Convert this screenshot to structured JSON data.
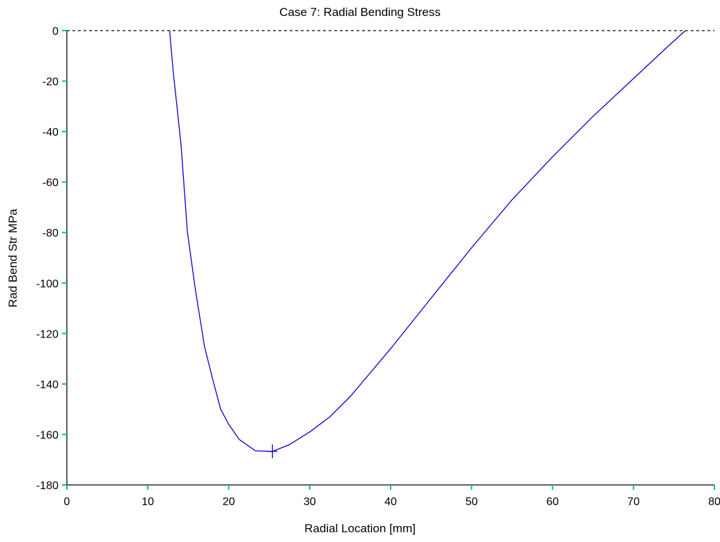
{
  "chart_data": {
    "type": "line",
    "title": "Case 7: Radial Bending Stress",
    "xlabel": "Radial Location [mm]",
    "ylabel": "Rad Bend Str MPa",
    "xlim": [
      0,
      80
    ],
    "ylim": [
      -180,
      0
    ],
    "xticks": [
      0,
      10,
      20,
      30,
      40,
      50,
      60,
      70,
      80
    ],
    "yticks": [
      0,
      -20,
      -40,
      -60,
      -80,
      -100,
      -120,
      -140,
      -160,
      -180
    ],
    "grid": false,
    "zero_line": "dashed",
    "colors": {
      "series": "#0000cc",
      "tick": "#00c0a0",
      "axis": "#000000"
    },
    "series": [
      {
        "values_xy": [
          [
            12.7,
            0
          ],
          [
            13.1,
            -15
          ],
          [
            14.1,
            -45
          ],
          [
            14.9,
            -80
          ],
          [
            15.9,
            -103
          ],
          [
            17.0,
            -125
          ],
          [
            18.0,
            -138
          ],
          [
            19.0,
            -150
          ],
          [
            20.0,
            -156
          ],
          [
            21.3,
            -162
          ],
          [
            23.3,
            -166.5
          ],
          [
            25.4,
            -166.7
          ],
          [
            27.5,
            -164
          ],
          [
            30.0,
            -159
          ],
          [
            32.5,
            -153
          ],
          [
            35.0,
            -145
          ],
          [
            40.0,
            -126
          ],
          [
            45.0,
            -106
          ],
          [
            50.0,
            -86
          ],
          [
            55.0,
            -67
          ],
          [
            60.0,
            -50
          ],
          [
            65.0,
            -34
          ],
          [
            70.0,
            -19
          ],
          [
            74.0,
            -7
          ],
          [
            76.4,
            0
          ]
        ]
      }
    ],
    "marker": {
      "x": 25.4,
      "y": -166.7,
      "shape": "plus"
    }
  }
}
